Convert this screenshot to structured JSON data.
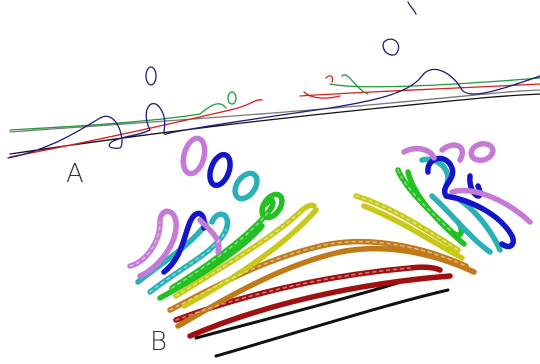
{
  "panels": [
    {
      "label": "A"
    },
    {
      "label": "B"
    }
  ],
  "colors": {
    "black": "#111111",
    "gray": "#777777",
    "navy": "#1f1f7a",
    "red": "#d62020",
    "green": "#1f9a3a",
    "blue": "#1515c8",
    "magenta": "#c47ad6",
    "cyan": "#2ab0b8",
    "lime": "#22c020",
    "yellow": "#c8c818",
    "orange": "#c07a18",
    "darkred": "#a01010"
  }
}
